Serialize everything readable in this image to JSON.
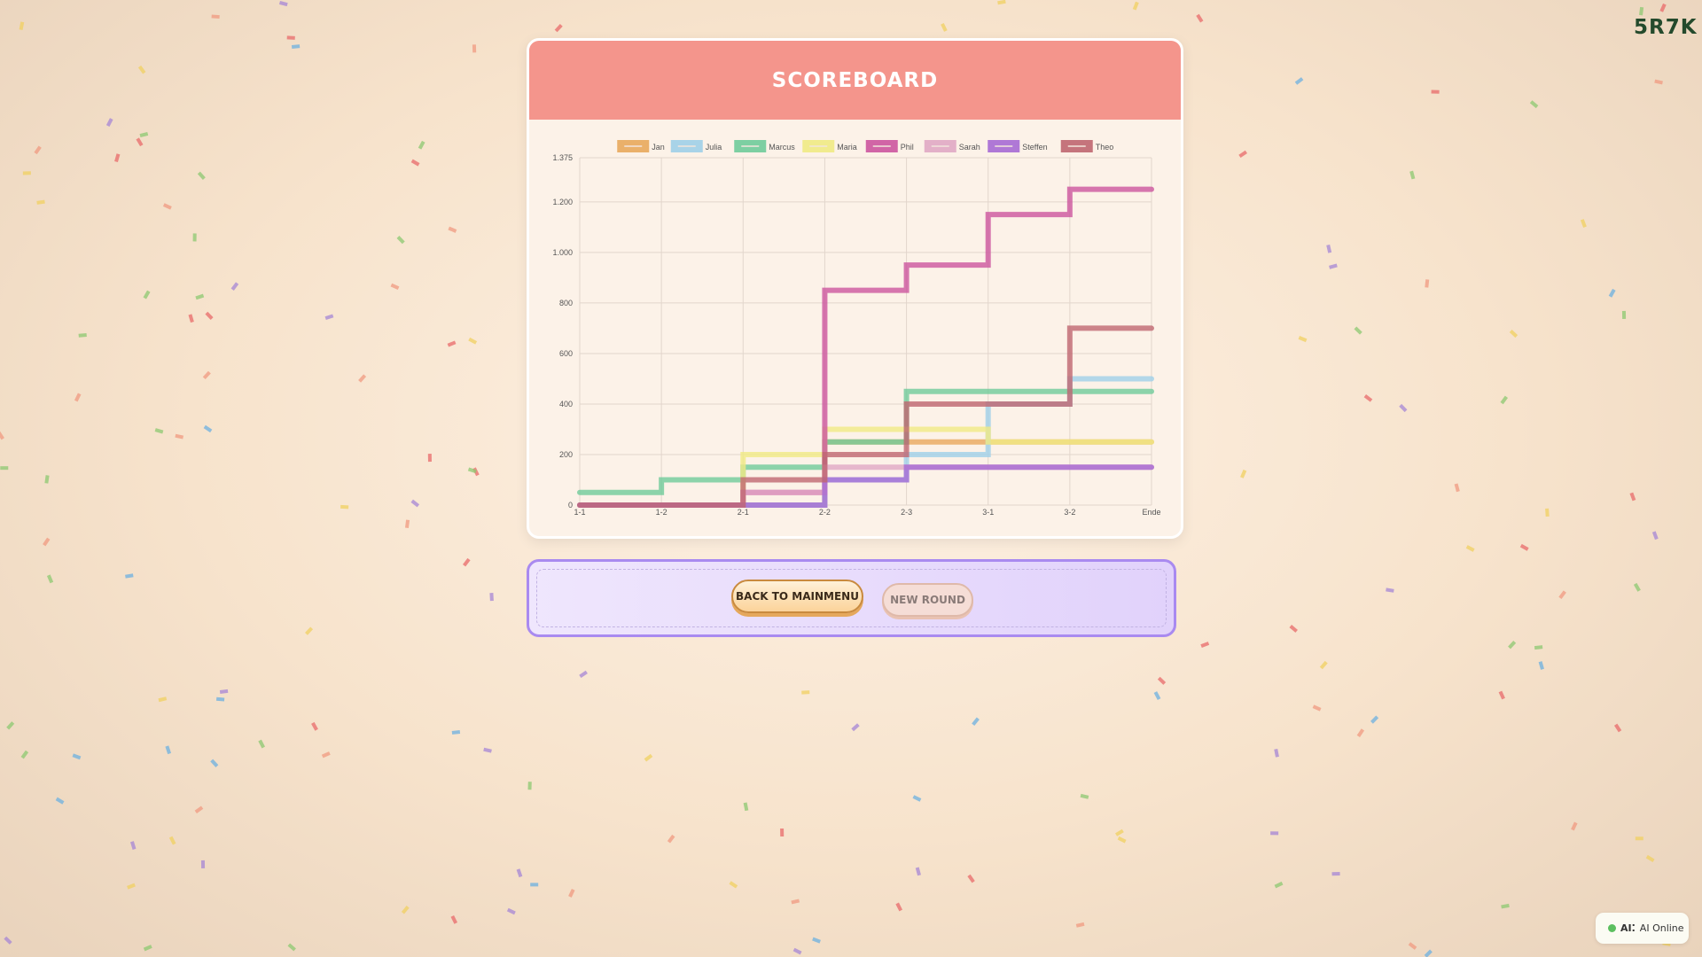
{
  "header": {
    "title": "SCOREBOARD"
  },
  "actions": {
    "back_label": "BACK TO MAINMENU",
    "new_round_label": "NEW ROUND"
  },
  "corner_code": "5R7K",
  "ai_status": {
    "icon_label": "AI⁚",
    "text": "AI Online",
    "color": "#5bbf5f"
  },
  "chart_data": {
    "type": "line",
    "stepped": "before",
    "categories": [
      "1-1",
      "1-2",
      "2-1",
      "2-2",
      "2-3",
      "3-1",
      "3-2",
      "Ende"
    ],
    "ylim": [
      0,
      1375
    ],
    "yticks": [
      0,
      200,
      400,
      600,
      800,
      1000,
      1200,
      1375
    ],
    "ytick_labels": [
      "0",
      "200",
      "400",
      "600",
      "800",
      "1.000",
      "1.200",
      "1.375"
    ],
    "grid": true,
    "legend": "top",
    "series": [
      {
        "name": "Jan",
        "color": "#e8a85c",
        "values": [
          0,
          0,
          0,
          0,
          250,
          250,
          250,
          250
        ]
      },
      {
        "name": "Julia",
        "color": "#9fcfe8",
        "values": [
          0,
          0,
          0,
          0,
          100,
          200,
          400,
          500
        ]
      },
      {
        "name": "Marcus",
        "color": "#6fcb9a",
        "values": [
          50,
          50,
          100,
          150,
          250,
          450,
          450,
          450
        ]
      },
      {
        "name": "Maria",
        "color": "#f0ea84",
        "values": [
          0,
          0,
          0,
          200,
          300,
          300,
          250,
          250
        ]
      },
      {
        "name": "Phil",
        "color": "#cc559e",
        "values": [
          0,
          0,
          0,
          50,
          850,
          950,
          1150,
          1250
        ]
      },
      {
        "name": "Sarah",
        "color": "#e0a8c4",
        "values": [
          0,
          0,
          0,
          50,
          150,
          150,
          150,
          150
        ]
      },
      {
        "name": "Steffen",
        "color": "#a66ad4",
        "values": [
          0,
          0,
          0,
          0,
          100,
          150,
          150,
          150
        ]
      },
      {
        "name": "Theo",
        "color": "#bf6670",
        "values": [
          0,
          0,
          0,
          100,
          200,
          400,
          400,
          700
        ]
      }
    ]
  }
}
